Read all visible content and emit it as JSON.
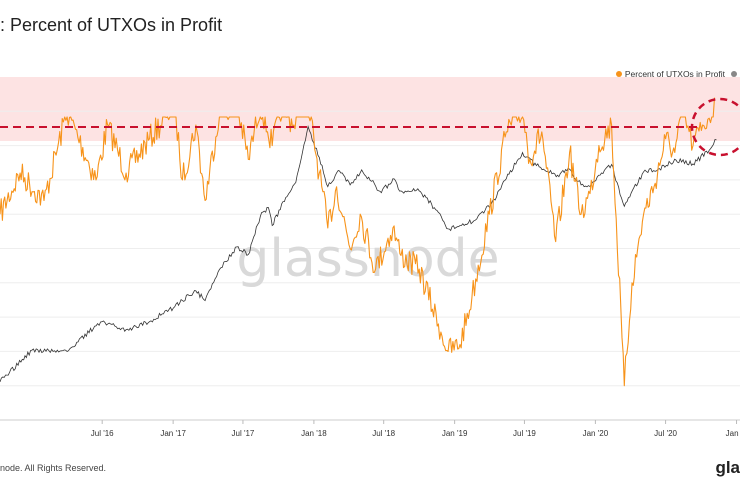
{
  "header": {
    "title": ": Percent of UTXOs in Profit"
  },
  "legend": {
    "items": [
      {
        "label": "Percent of UTXOs in Profit",
        "color": "#f7931a"
      },
      {
        "label": "",
        "color": "#888888"
      }
    ]
  },
  "footer": {
    "copyright": "node. All Rights Reserved.",
    "brand": "gla"
  },
  "watermark": "glassnode",
  "colors": {
    "profit": "#f7931a",
    "price": "#333333",
    "band": "#fde3e3",
    "threshold": "#c8102e"
  },
  "chart_data": {
    "type": "line",
    "x_ticks": [
      "Jul '16",
      "Jan '17",
      "Jul '17",
      "Jan '18",
      "Jul '18",
      "Jan '19",
      "Jul '19",
      "Jan '20",
      "Jul '20",
      "Jan '"
    ],
    "xlim": [
      "2015-10-10",
      "2021-01-10"
    ],
    "ylim": [
      50,
      100
    ],
    "highlight_band": [
      95,
      100
    ],
    "threshold": 97,
    "series": [
      {
        "name": "Percent of UTXOs in Profit",
        "x": [
          "2015-10-10",
          "2015-12-01",
          "2016-02-01",
          "2016-04-01",
          "2016-06-15",
          "2016-07-15",
          "2016-09-01",
          "2016-11-01",
          "2017-01-05",
          "2017-01-25",
          "2017-03-01",
          "2017-03-25",
          "2017-05-01",
          "2017-06-15",
          "2017-07-15",
          "2017-08-15",
          "2017-09-15",
          "2017-10-10",
          "2017-11-10",
          "2017-12-10",
          "2018-01-15",
          "2018-02-06",
          "2018-03-01",
          "2018-04-05",
          "2018-05-01",
          "2018-06-10",
          "2018-07-25",
          "2018-08-15",
          "2018-10-01",
          "2018-11-20",
          "2018-12-15",
          "2019-01-15",
          "2019-02-15",
          "2019-04-01",
          "2019-05-15",
          "2019-06-26",
          "2019-07-15",
          "2019-08-15",
          "2019-09-20",
          "2019-10-26",
          "2019-11-25",
          "2019-12-18",
          "2020-01-10",
          "2020-02-12",
          "2020-03-10",
          "2020-03-16",
          "2020-04-05",
          "2020-05-05",
          "2020-06-01",
          "2020-07-01",
          "2020-07-25",
          "2020-08-15",
          "2020-09-10",
          "2020-10-05",
          "2020-10-22",
          "2020-11-05"
        ],
        "values": [
          80,
          86,
          82,
          95,
          85,
          93,
          86,
          91,
          96,
          85,
          93,
          82,
          95,
          96,
          88,
          96,
          90,
          96,
          93,
          98,
          86,
          78,
          84,
          75,
          80,
          72,
          78,
          74,
          72,
          64,
          60,
          61,
          68,
          80,
          92,
          95,
          88,
          92,
          76,
          89,
          80,
          83,
          90,
          93,
          62,
          55,
          70,
          80,
          84,
          91,
          89,
          95,
          90,
          93,
          94,
          97
        ]
      },
      {
        "name": "",
        "x": [
          "2015-10-10",
          "2016-01-01",
          "2016-04-01",
          "2016-06-15",
          "2016-07-01",
          "2016-09-01",
          "2016-11-01",
          "2017-01-05",
          "2017-01-25",
          "2017-03-01",
          "2017-03-25",
          "2017-05-01",
          "2017-06-15",
          "2017-07-15",
          "2017-08-15",
          "2017-09-05",
          "2017-09-15",
          "2017-10-20",
          "2017-11-15",
          "2017-12-17",
          "2018-01-15",
          "2018-02-06",
          "2018-03-05",
          "2018-04-05",
          "2018-05-05",
          "2018-06-25",
          "2018-07-25",
          "2018-08-15",
          "2018-10-01",
          "2018-11-20",
          "2018-12-15",
          "2019-01-15",
          "2019-02-20",
          "2019-04-05",
          "2019-05-15",
          "2019-06-26",
          "2019-08-01",
          "2019-09-25",
          "2019-10-26",
          "2019-11-25",
          "2019-12-18",
          "2020-02-12",
          "2020-03-16",
          "2020-05-05",
          "2020-06-15",
          "2020-07-28",
          "2020-09-10",
          "2020-10-22",
          "2020-11-10"
        ],
        "values": [
          250,
          430,
          420,
          650,
          700,
          610,
          700,
          900,
          1000,
          1180,
          1000,
          1700,
          2500,
          2200,
          4200,
          4900,
          3600,
          5800,
          7500,
          19500,
          11500,
          7000,
          9200,
          7200,
          9300,
          6300,
          8000,
          6500,
          6500,
          4500,
          3400,
          3600,
          3900,
          5100,
          8000,
          12500,
          10000,
          8500,
          9400,
          7200,
          7000,
          10200,
          5000,
          9000,
          9500,
          11000,
          10300,
          13000,
          15500
        ]
      }
    ]
  }
}
